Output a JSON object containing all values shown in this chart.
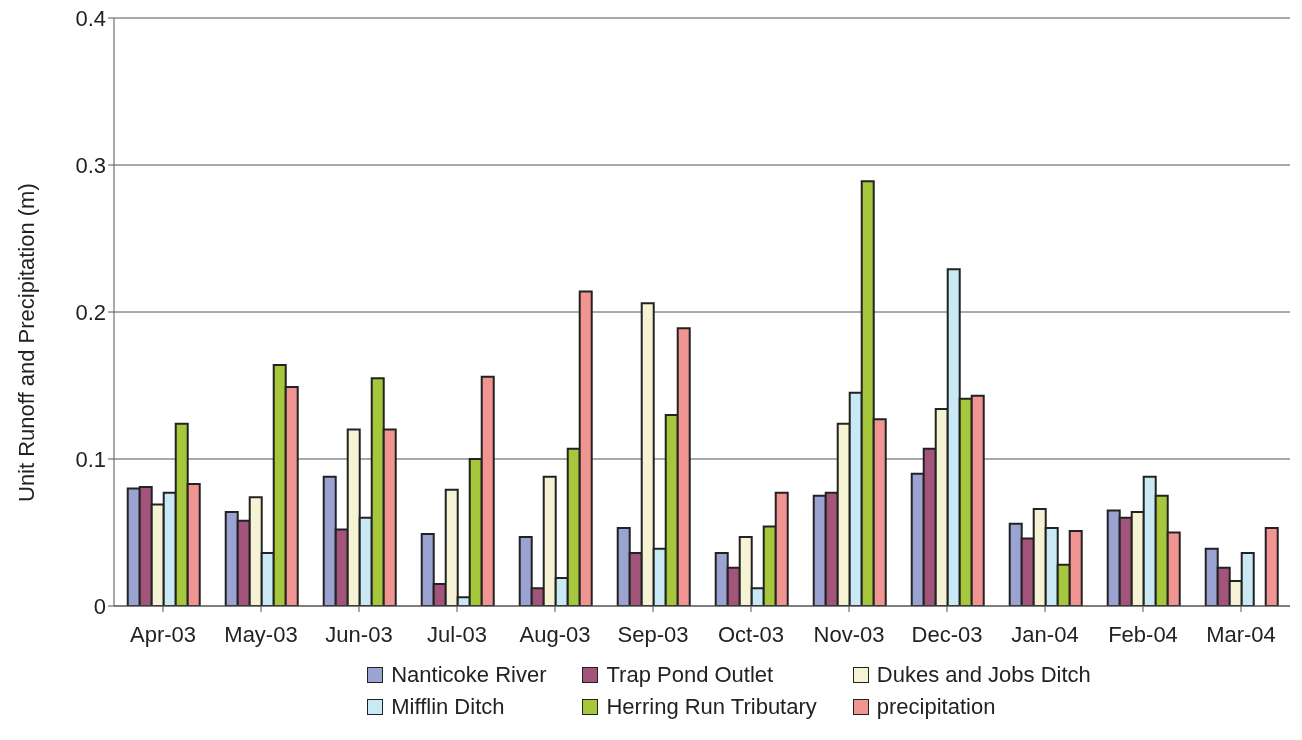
{
  "chart_data": {
    "type": "bar",
    "ylabel": "Unit Runoff and Precipitation (m)",
    "categories": [
      "Apr-03",
      "May-03",
      "Jun-03",
      "Jul-03",
      "Aug-03",
      "Sep-03",
      "Oct-03",
      "Nov-03",
      "Dec-03",
      "Jan-04",
      "Feb-04",
      "Mar-04"
    ],
    "series": [
      {
        "name": "Nanticoke River",
        "color": "#9aa3d2",
        "values": [
          0.08,
          0.064,
          0.088,
          0.049,
          0.047,
          0.053,
          0.036,
          0.075,
          0.09,
          0.056,
          0.065,
          0.039
        ]
      },
      {
        "name": "Trap Pond Outlet",
        "color": "#a3547a",
        "values": [
          0.081,
          0.058,
          0.052,
          0.015,
          0.012,
          0.036,
          0.026,
          0.077,
          0.107,
          0.046,
          0.06,
          0.026
        ]
      },
      {
        "name": "Dukes and Jobs Ditch",
        "color": "#f5f3d4",
        "values": [
          0.069,
          0.074,
          0.12,
          0.079,
          0.088,
          0.206,
          0.047,
          0.124,
          0.134,
          0.066,
          0.064,
          0.017
        ]
      },
      {
        "name": "Mifflin Ditch",
        "color": "#c9e9f4",
        "values": [
          0.077,
          0.036,
          0.06,
          0.006,
          0.019,
          0.039,
          0.012,
          0.145,
          0.229,
          0.053,
          0.088,
          0.036
        ]
      },
      {
        "name": "Herring Run Tributary",
        "color": "#a6c63c",
        "values": [
          0.124,
          0.164,
          0.155,
          0.1,
          0.107,
          0.13,
          0.054,
          0.289,
          0.141,
          0.028,
          0.075,
          null
        ]
      },
      {
        "name": "precipitation",
        "color": "#f19593",
        "values": [
          0.083,
          0.149,
          0.12,
          0.156,
          0.214,
          0.189,
          0.077,
          0.127,
          0.143,
          0.051,
          0.05,
          0.053
        ]
      }
    ],
    "ylim": [
      0,
      0.4
    ],
    "yticks": [
      0,
      0.1,
      0.2,
      0.3,
      0.4
    ],
    "grid": "y",
    "legend": "bottom"
  }
}
